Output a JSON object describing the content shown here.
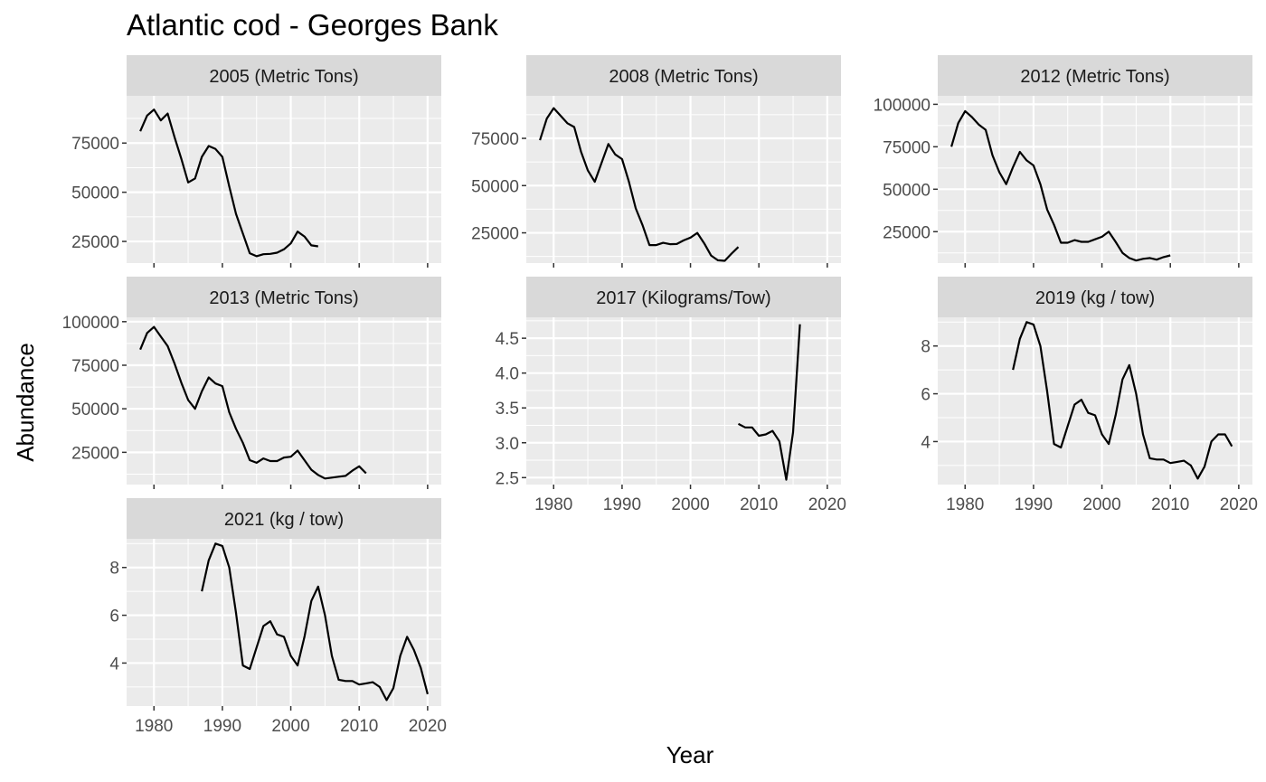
{
  "chart_data": {
    "type": "line",
    "title": "Atlantic cod - Georges Bank",
    "xlabel": "Year",
    "ylabel": "Abundance",
    "xlim": [
      1976,
      2022
    ],
    "x_ticks": [
      1980,
      1990,
      2000,
      2010,
      2020
    ],
    "colors": {
      "panel_bg": "#ebebeb",
      "strip_bg": "#d9d9d9",
      "grid": "#ffffff",
      "line": "#000000",
      "tick_text": "#4d4d4d"
    },
    "panels": [
      {
        "label": "2005 (Metric Tons)",
        "ylim": [
          14000,
          99000
        ],
        "y_ticks": [
          25000,
          50000,
          75000
        ],
        "y_tick_labels": [
          "25000",
          "50000",
          "75000"
        ],
        "x": [
          1978,
          1979,
          1980,
          1981,
          1982,
          1983,
          1984,
          1985,
          1986,
          1987,
          1988,
          1989,
          1990,
          1991,
          1992,
          1993,
          1994,
          1995,
          1996,
          1997,
          1998,
          1999,
          2000,
          2001,
          2002,
          2003,
          2004
        ],
        "y": [
          81000,
          89000,
          92000,
          86500,
          90000,
          78000,
          67000,
          55000,
          57000,
          68000,
          73500,
          72000,
          68000,
          53000,
          39000,
          29000,
          19000,
          17500,
          18500,
          18700,
          19300,
          21000,
          24000,
          30000,
          27500,
          23000,
          22500
        ]
      },
      {
        "label": "2008 (Metric Tons)",
        "ylim": [
          9000,
          97500
        ],
        "y_ticks": [
          25000,
          50000,
          75000
        ],
        "y_tick_labels": [
          "25000",
          "50000",
          "75000"
        ],
        "x": [
          1978,
          1979,
          1980,
          1981,
          1982,
          1983,
          1984,
          1985,
          1986,
          1987,
          1988,
          1989,
          1990,
          1991,
          1992,
          1993,
          1994,
          1995,
          1996,
          1997,
          1998,
          1999,
          2000,
          2001,
          2002,
          2003,
          2004,
          2005,
          2006,
          2007
        ],
        "y": [
          74000,
          85500,
          91000,
          87000,
          83000,
          81000,
          68000,
          58000,
          52000,
          62000,
          72000,
          66500,
          64000,
          52000,
          38000,
          29000,
          18500,
          18500,
          19700,
          19000,
          19100,
          21000,
          22500,
          25000,
          19500,
          13000,
          10500,
          10200,
          14000,
          17500
        ]
      },
      {
        "label": "2012 (Metric Tons)",
        "ylim": [
          6500,
          105000
        ],
        "y_ticks": [
          25000,
          50000,
          75000,
          100000
        ],
        "y_tick_labels": [
          "25000",
          "50000",
          "75000",
          "100000"
        ],
        "x": [
          1978,
          1979,
          1980,
          1981,
          1982,
          1983,
          1984,
          1985,
          1986,
          1987,
          1988,
          1989,
          1990,
          1991,
          1992,
          1993,
          1994,
          1995,
          1996,
          1997,
          1998,
          1999,
          2000,
          2001,
          2002,
          2003,
          2004,
          2005,
          2006,
          2007,
          2008,
          2009,
          2010
        ],
        "y": [
          75000,
          89000,
          96000,
          92500,
          88000,
          85000,
          70000,
          60000,
          53000,
          63000,
          72000,
          67000,
          64000,
          53000,
          38000,
          29000,
          18500,
          18500,
          20000,
          19000,
          19000,
          20500,
          22000,
          25000,
          19000,
          12500,
          9500,
          8000,
          9000,
          9500,
          8500,
          10000,
          11000
        ]
      },
      {
        "label": "2013 (Metric Tons)",
        "ylim": [
          6500,
          102500
        ],
        "y_ticks": [
          25000,
          50000,
          75000,
          100000
        ],
        "y_tick_labels": [
          "25000",
          "50000",
          "75000",
          "100000"
        ],
        "x": [
          1978,
          1979,
          1980,
          1981,
          1982,
          1983,
          1984,
          1985,
          1986,
          1987,
          1988,
          1989,
          1990,
          1991,
          1992,
          1993,
          1994,
          1995,
          1996,
          1997,
          1998,
          1999,
          2000,
          2001,
          2002,
          2003,
          2004,
          2005,
          2006,
          2007,
          2008,
          2009,
          2010,
          2011
        ],
        "y": [
          84000,
          93500,
          97000,
          91500,
          86000,
          76000,
          65000,
          55000,
          50000,
          60000,
          68000,
          64500,
          63000,
          48000,
          38500,
          30500,
          20500,
          19000,
          21500,
          20000,
          20000,
          22000,
          22500,
          26000,
          20500,
          15000,
          12000,
          10000,
          10500,
          11000,
          11500,
          14500,
          17000,
          13000
        ]
      },
      {
        "label": "2017 (Kilograms/Tow)",
        "ylim": [
          2.4,
          4.8
        ],
        "y_ticks": [
          2.5,
          3.0,
          3.5,
          4.0,
          4.5
        ],
        "y_tick_labels": [
          "2.5",
          "3.0",
          "3.5",
          "4.0",
          "4.5"
        ],
        "x": [
          2007,
          2008,
          2009,
          2010,
          2011,
          2012,
          2013,
          2014,
          2015,
          2016
        ],
        "y": [
          3.27,
          3.22,
          3.22,
          3.1,
          3.12,
          3.17,
          3.02,
          2.47,
          3.15,
          4.7
        ]
      },
      {
        "label": "2019 (kg / tow)",
        "ylim": [
          2.2,
          9.2
        ],
        "y_ticks": [
          4,
          6,
          8
        ],
        "y_tick_labels": [
          "4",
          "6",
          "8"
        ],
        "x": [
          1987,
          1988,
          1989,
          1990,
          1991,
          1992,
          1993,
          1994,
          1995,
          1996,
          1997,
          1998,
          1999,
          2000,
          2001,
          2002,
          2003,
          2004,
          2005,
          2006,
          2007,
          2008,
          2009,
          2010,
          2011,
          2012,
          2013,
          2014,
          2015,
          2016,
          2017,
          2018,
          2019
        ],
        "y": [
          7.0,
          8.3,
          9.0,
          8.9,
          8.0,
          6.1,
          3.9,
          3.75,
          4.65,
          5.55,
          5.75,
          5.2,
          5.1,
          4.3,
          3.9,
          5.1,
          6.6,
          7.2,
          6.0,
          4.3,
          3.3,
          3.25,
          3.25,
          3.1,
          3.15,
          3.2,
          3.0,
          2.45,
          2.95,
          4.0,
          4.3,
          4.3,
          3.8
        ]
      },
      {
        "label": "2021 (kg / tow)",
        "ylim": [
          2.2,
          9.2
        ],
        "y_ticks": [
          4,
          6,
          8
        ],
        "y_tick_labels": [
          "4",
          "6",
          "8"
        ],
        "x": [
          1987,
          1988,
          1989,
          1990,
          1991,
          1992,
          1993,
          1994,
          1995,
          1996,
          1997,
          1998,
          1999,
          2000,
          2001,
          2002,
          2003,
          2004,
          2005,
          2006,
          2007,
          2008,
          2009,
          2010,
          2011,
          2012,
          2013,
          2014,
          2015,
          2016,
          2017,
          2018,
          2019,
          2020
        ],
        "y": [
          7.0,
          8.3,
          9.0,
          8.9,
          8.0,
          6.1,
          3.9,
          3.75,
          4.65,
          5.55,
          5.75,
          5.2,
          5.1,
          4.3,
          3.9,
          5.1,
          6.6,
          7.2,
          6.0,
          4.3,
          3.3,
          3.25,
          3.25,
          3.1,
          3.15,
          3.2,
          3.0,
          2.45,
          2.95,
          4.3,
          5.1,
          4.55,
          3.8,
          2.7
        ]
      }
    ]
  }
}
